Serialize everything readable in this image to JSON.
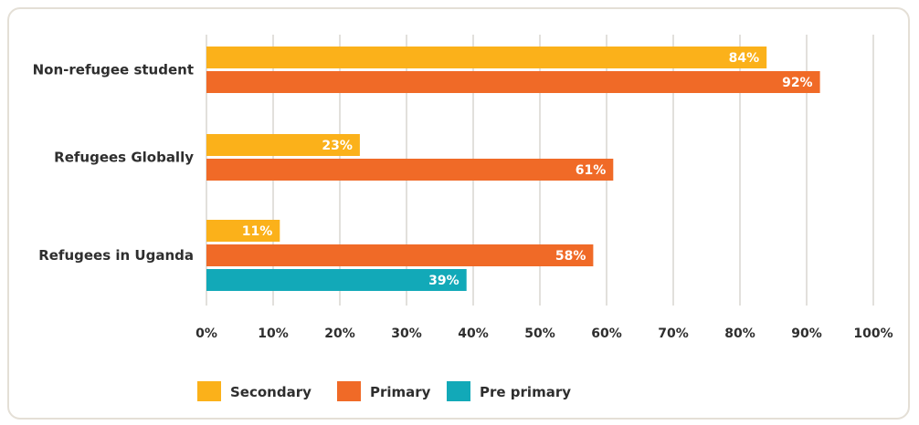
{
  "chart_data": {
    "type": "bar",
    "orientation": "horizontal",
    "categories": [
      "Non-refugee student",
      "Refugees Globally",
      "Refugees in Uganda"
    ],
    "series": [
      {
        "name": "Secondary",
        "color": "#fbb11a",
        "values": [
          84,
          23,
          11
        ],
        "labels": [
          "84%",
          "23%",
          "11%"
        ]
      },
      {
        "name": "Primary",
        "color": "#f06a27",
        "values": [
          92,
          61,
          58
        ],
        "labels": [
          "92%",
          "61%",
          "58%"
        ]
      },
      {
        "name": "Pre primary",
        "color": "#12a9b8",
        "values": [
          null,
          null,
          39
        ],
        "labels": [
          null,
          null,
          "39%"
        ]
      }
    ],
    "xlim": [
      0,
      100
    ],
    "xticks": [
      0,
      10,
      20,
      30,
      40,
      50,
      60,
      70,
      80,
      90,
      100
    ],
    "xtick_labels": [
      "0%",
      "10%",
      "20%",
      "30%",
      "40%",
      "50%",
      "60%",
      "70%",
      "80%",
      "90%",
      "100%"
    ],
    "grid": true,
    "legend_position": "bottom-left"
  }
}
